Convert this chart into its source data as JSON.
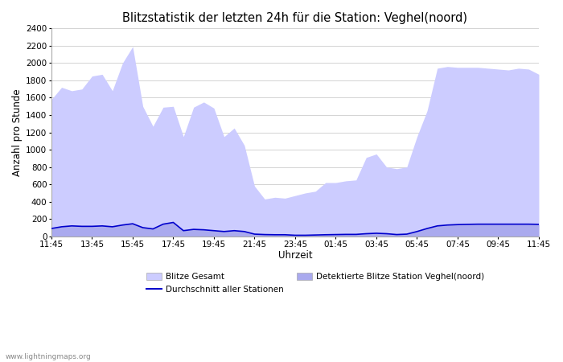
{
  "title": "Blitzstatistik der letzten 24h für die Station: Veghel(noord)",
  "xlabel": "Uhrzeit",
  "ylabel": "Anzahl pro Stunde",
  "ylim": [
    0,
    2400
  ],
  "yticks": [
    0,
    200,
    400,
    600,
    800,
    1000,
    1200,
    1400,
    1600,
    1800,
    2000,
    2200,
    2400
  ],
  "xtick_labels": [
    "11:45",
    "13:45",
    "15:45",
    "17:45",
    "19:45",
    "21:45",
    "23:45",
    "01:45",
    "03:45",
    "05:45",
    "07:45",
    "09:45",
    "11:45"
  ],
  "watermark": "www.lightningmaps.org",
  "legend_entries": [
    "Blitze Gesamt",
    "Durchschnitt aller Stationen",
    "Detektierte Blitze Station Veghel(noord)"
  ],
  "color_gesamt": "#ccccff",
  "color_detektiert": "#aaaaee",
  "color_avg_line": "#0000cc",
  "gesamt_values": [
    1580,
    1720,
    1680,
    1700,
    1850,
    1870,
    1680,
    2000,
    2190,
    1500,
    1270,
    1490,
    1500,
    1150,
    1490,
    1550,
    1480,
    1150,
    1250,
    1050,
    580,
    430,
    450,
    440,
    470,
    500,
    520,
    620,
    620,
    640,
    650,
    910,
    950,
    800,
    780,
    800,
    1150,
    1450,
    1940,
    1960,
    1950,
    1950,
    1950,
    1940,
    1930,
    1920,
    1940,
    1930,
    1870
  ],
  "detekt_values": [
    90,
    110,
    120,
    115,
    115,
    120,
    110,
    130,
    145,
    100,
    85,
    140,
    160,
    65,
    80,
    75,
    65,
    55,
    65,
    55,
    25,
    20,
    18,
    18,
    12,
    12,
    15,
    18,
    20,
    22,
    22,
    30,
    35,
    30,
    20,
    25,
    55,
    90,
    120,
    130,
    135,
    138,
    140,
    140,
    140,
    140,
    140,
    140,
    138
  ],
  "avg_values": [
    90,
    110,
    120,
    115,
    115,
    120,
    110,
    130,
    145,
    100,
    85,
    140,
    160,
    65,
    80,
    75,
    65,
    55,
    65,
    55,
    25,
    20,
    18,
    18,
    12,
    12,
    15,
    18,
    20,
    22,
    22,
    30,
    35,
    30,
    20,
    25,
    55,
    90,
    120,
    130,
    135,
    138,
    140,
    140,
    140,
    140,
    140,
    140,
    138
  ],
  "background_color": "#ffffff",
  "plot_bg_color": "#ffffff",
  "grid_color": "#cccccc",
  "figwidth": 7.0,
  "figheight": 4.5,
  "dpi": 100
}
